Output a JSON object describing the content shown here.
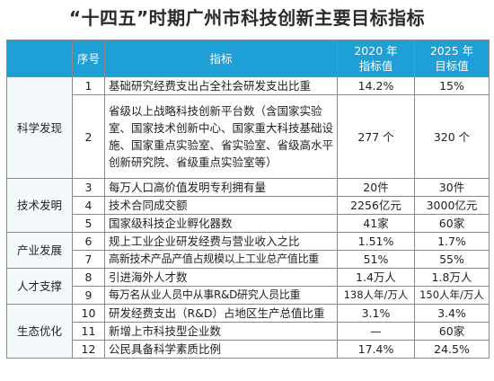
{
  "title": "“十四五”时期广州市科技创新主要目标指标",
  "header": {
    "index": "序号",
    "indicator": "指标",
    "value_2020": "2020 年\n指标值",
    "value_2025": "2025 年\n目标值"
  },
  "categories": {
    "science": "科学发现",
    "tech": "技术发明",
    "industry": "产业发展",
    "talent": "人才支撑",
    "ecology": "生态优化"
  },
  "rows": [
    {
      "no": "1",
      "name": "基础研究经费支出占全社会研发支出比重",
      "v2020": "14.2%",
      "v2025": "15%"
    },
    {
      "no": "2",
      "name": "省级以上战略科技创新平台数（含国家实验室、国家技术创新中心、国家重大科技基础设施、国家重点实验室、省实验室、省级高水平创新研究院、省级重点实验室等）",
      "v2020": "277 个",
      "v2025": "320 个"
    },
    {
      "no": "3",
      "name": "每万人口高价值发明专利拥有量",
      "v2020": "20件",
      "v2025": "30件"
    },
    {
      "no": "4",
      "name": "技术合同成交额",
      "v2020": "2256亿元",
      "v2025": "3000亿元"
    },
    {
      "no": "5",
      "name": "国家级科技企业孵化器数",
      "v2020": "41家",
      "v2025": "60家"
    },
    {
      "no": "6",
      "name": "规上工业企业研发经费与营业收入之比",
      "v2020": "1.51%",
      "v2025": "1.7%"
    },
    {
      "no": "7",
      "name": "高新技术产品产值占规模以上工业总产值比重",
      "v2020": "51%",
      "v2025": "55%"
    },
    {
      "no": "8",
      "name": "引进海外人才数",
      "v2020": "1.4万人",
      "v2025": "1.8万人"
    },
    {
      "no": "9",
      "name": "每万名从业人员中从事R&D研究人员比重",
      "v2020": "138人年/万人",
      "v2025": "150人年/万人"
    },
    {
      "no": "10",
      "name": "研发经费支出（R&D）占地区生产总值比重",
      "v2020": "3.1%",
      "v2025": "3.4%"
    },
    {
      "no": "11",
      "name": "新增上市科技型企业数",
      "v2020": "—",
      "v2025": "60家"
    },
    {
      "no": "12",
      "name": "公民具备科学素质比例",
      "v2020": "17.4%",
      "v2025": "24.5%"
    }
  ]
}
